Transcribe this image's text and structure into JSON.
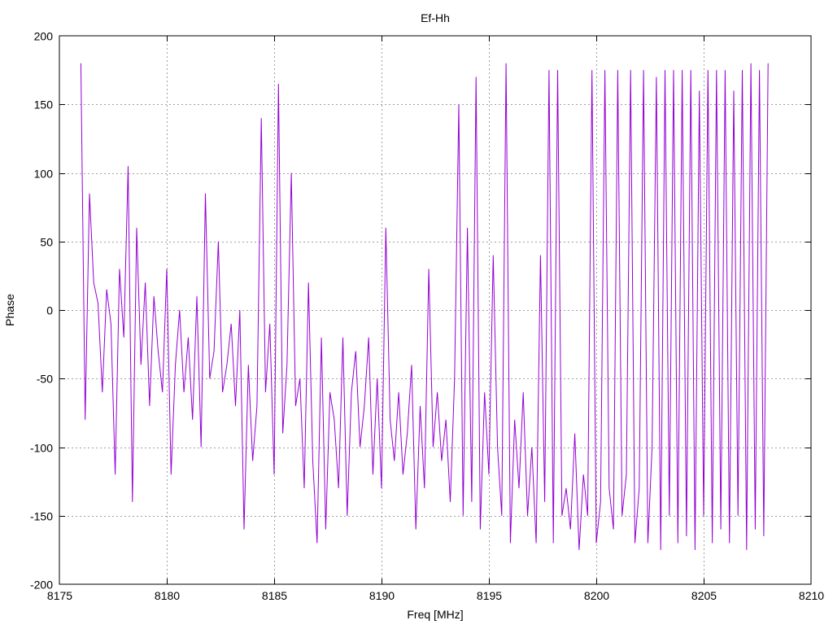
{
  "chart_data": {
    "type": "line",
    "title": "Ef-Hh",
    "xlabel": "Freq [MHz]",
    "ylabel": "Phase",
    "xlim": [
      8175,
      8210
    ],
    "ylim": [
      -200,
      200
    ],
    "xticks": [
      8175,
      8180,
      8185,
      8190,
      8195,
      8200,
      8205,
      8210
    ],
    "yticks": [
      -200,
      -150,
      -100,
      -50,
      0,
      50,
      100,
      150,
      200
    ],
    "grid": true,
    "line_color": "#9400d3",
    "series": [
      {
        "name": "Ef-Hh",
        "x_start": 8176,
        "x_step": 0.2,
        "values": [
          180,
          -80,
          85,
          20,
          5,
          -60,
          15,
          -10,
          -120,
          30,
          -20,
          105,
          -140,
          60,
          -40,
          20,
          -70,
          10,
          -30,
          -60,
          30,
          -120,
          -40,
          0,
          -60,
          -20,
          -80,
          10,
          -100,
          85,
          -50,
          -30,
          50,
          -60,
          -40,
          -10,
          -70,
          0,
          -160,
          -40,
          -110,
          -70,
          140,
          -60,
          -10,
          -120,
          165,
          -90,
          -40,
          100,
          -70,
          -50,
          -130,
          20,
          -110,
          -170,
          -20,
          -160,
          -60,
          -80,
          -130,
          -20,
          -150,
          -60,
          -30,
          -100,
          -70,
          -20,
          -120,
          -50,
          -130,
          60,
          -80,
          -110,
          -60,
          -120,
          -90,
          -40,
          -160,
          -70,
          -130,
          30,
          -100,
          -60,
          -110,
          -80,
          -140,
          -50,
          150,
          -150,
          60,
          -140,
          170,
          -160,
          -60,
          -120,
          40,
          -100,
          -150,
          180,
          -170,
          -80,
          -130,
          -60,
          -150,
          -100,
          -170,
          40,
          -140,
          175,
          -170,
          175,
          -150,
          -130,
          -160,
          -90,
          -175,
          -120,
          -150,
          175,
          -170,
          -140,
          175,
          -130,
          -160,
          175,
          -150,
          -120,
          175,
          -170,
          -130,
          175,
          -170,
          -100,
          170,
          -175,
          175,
          -150,
          175,
          -170,
          175,
          -165,
          175,
          -175,
          160,
          -150,
          175,
          -170,
          175,
          -160,
          175,
          -170,
          160,
          -150,
          175,
          -175,
          180,
          -160,
          175,
          -165,
          180
        ]
      }
    ]
  }
}
